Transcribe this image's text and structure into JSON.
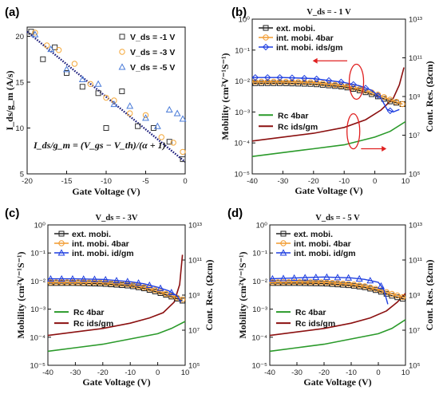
{
  "colors": {
    "ext": "#222222",
    "int4": "#f29a2e",
    "intgm": "#1f3fe0",
    "rc4": "#2a9a2a",
    "rcgm": "#8b1010",
    "scatter1": "#333333",
    "scatter3": "#f4a83a",
    "scatter5": "#4a7bd8",
    "annot": "#e02020"
  },
  "chart_data": [
    {
      "panel": "(a)",
      "type": "scatter",
      "xlabel": "Gate Voltage (V)",
      "ylabel": "I_ds/g_m (A/s)",
      "xlim": [
        -20,
        0
      ],
      "ylim": [
        5,
        21
      ],
      "xticks": [
        "-20",
        "-15",
        "-10",
        "-5",
        "0"
      ],
      "yticks": [
        "5",
        "10",
        "15",
        "20"
      ],
      "formula": "I_ds/g_m = (V_gs − V_th)/(α + 1)",
      "series": [
        {
          "name": "V_ds = -1 V",
          "marker": "square",
          "points": [
            [
              -19.5,
              20.5
            ],
            [
              -18,
              17.5
            ],
            [
              -16.5,
              18.8
            ],
            [
              -15,
              16
            ],
            [
              -13,
              14.5
            ],
            [
              -11,
              13.8
            ],
            [
              -10,
              10
            ],
            [
              -8,
              14
            ],
            [
              -6,
              10.2
            ],
            [
              -4,
              10
            ],
            [
              -2,
              8.5
            ],
            [
              -0.3,
              6.6
            ]
          ]
        },
        {
          "name": "V_ds = -3 V",
          "marker": "circle",
          "points": [
            [
              -19,
              20.4
            ],
            [
              -17.5,
              19
            ],
            [
              -16,
              18.5
            ],
            [
              -14,
              17
            ],
            [
              -12,
              14.8
            ],
            [
              -10,
              13.3
            ],
            [
              -9,
              13
            ],
            [
              -7,
              11.6
            ],
            [
              -5,
              11.4
            ],
            [
              -3,
              9
            ],
            [
              -1.5,
              8.4
            ],
            [
              -0.3,
              7.4
            ]
          ]
        },
        {
          "name": "V_ds = -5 V",
          "marker": "triangle",
          "points": [
            [
              -19,
              20.2
            ],
            [
              -17,
              18.6
            ],
            [
              -15,
              16.4
            ],
            [
              -13,
              15.3
            ],
            [
              -11,
              14.8
            ],
            [
              -9,
              12.6
            ],
            [
              -7,
              12.4
            ],
            [
              -5,
              11.1
            ],
            [
              -3.5,
              10.2
            ],
            [
              -2,
              12
            ],
            [
              -1,
              11.6
            ],
            [
              -0.3,
              11
            ]
          ]
        }
      ],
      "fit": [
        [
          -20,
          20.5
        ],
        [
          0,
          6.3
        ]
      ]
    },
    {
      "panel": "(b)",
      "type": "line",
      "title": "V_ds = - 1 V",
      "xlabel": "Gate Voltage (V)",
      "ylabel": "Mobility (cm²V⁻¹S⁻¹)",
      "y2label": "Cont. Res. (Ωcm)",
      "xlim": [
        -40,
        10
      ],
      "ylim_log": [
        -5,
        0
      ],
      "y2lim_log": [
        5,
        13
      ],
      "xticks": [
        "-40",
        "-30",
        "-20",
        "-10",
        "0",
        "10"
      ],
      "yticks": [
        "10⁻⁵",
        "10⁻⁴",
        "10⁻³",
        "10⁻²",
        "10⁻¹",
        "10⁰"
      ],
      "y2ticks": [
        "10⁵",
        "10⁷",
        "10⁹",
        "10¹¹",
        "10¹³"
      ],
      "legend_top": [
        "ext. mobi.",
        "int. mobi. 4bar",
        "int. mobi. ids/gm"
      ],
      "legend_bottom": [
        "Rc 4bar",
        "Rc ids/gm"
      ],
      "mobility": {
        "ext": [
          [
            -40,
            0.0085
          ],
          [
            -30,
            0.0085
          ],
          [
            -20,
            0.008
          ],
          [
            -10,
            0.0065
          ],
          [
            -5,
            0.005
          ],
          [
            0,
            0.0035
          ],
          [
            5,
            0.0022
          ],
          [
            9,
            0.0018
          ]
        ],
        "int4": [
          [
            -40,
            0.0095
          ],
          [
            -30,
            0.0095
          ],
          [
            -20,
            0.009
          ],
          [
            -10,
            0.007
          ],
          [
            -5,
            0.0055
          ],
          [
            0,
            0.004
          ],
          [
            5,
            0.0025
          ],
          [
            9,
            0.0018
          ]
        ],
        "intgm": [
          [
            -40,
            0.013
          ],
          [
            -30,
            0.013
          ],
          [
            -20,
            0.012
          ],
          [
            -10,
            0.009
          ],
          [
            -5,
            0.007
          ],
          [
            -1,
            0.005
          ],
          [
            2,
            0.0028
          ],
          [
            4,
            0.0012
          ],
          [
            6,
            0.001
          ],
          [
            8,
            0.0012
          ]
        ]
      },
      "rc_log": {
        "rc4": [
          [
            -40,
            5.9
          ],
          [
            -30,
            6.1
          ],
          [
            -20,
            6.3
          ],
          [
            -10,
            6.5
          ],
          [
            0,
            6.9
          ],
          [
            5,
            7.2
          ],
          [
            10,
            7.7
          ]
        ],
        "rcgm": [
          [
            -40,
            6.7
          ],
          [
            -30,
            6.9
          ],
          [
            -20,
            7.1
          ],
          [
            -10,
            7.4
          ],
          [
            -3,
            7.8
          ],
          [
            2,
            8.3
          ],
          [
            6,
            8.9
          ],
          [
            8,
            9.6
          ],
          [
            9.5,
            10.5
          ]
        ]
      }
    },
    {
      "panel": "(c)",
      "type": "line",
      "title": "V_ds = - 3V",
      "xlabel": "Gate Voltage (V)",
      "ylabel": "Mobility (cm²V⁻¹S⁻¹)",
      "y2label": "Cont. Res. (Ωcm)",
      "xlim": [
        -40,
        10
      ],
      "ylim_log": [
        -5,
        0
      ],
      "y2lim_log": [
        5,
        13
      ],
      "xticks": [
        "-40",
        "-30",
        "-20",
        "-10",
        "0",
        "10"
      ],
      "yticks": [
        "10⁻⁵",
        "10⁻⁴",
        "10⁻³",
        "10⁻²",
        "10⁻¹",
        "10⁰"
      ],
      "y2ticks": [
        "10⁵",
        "10⁷",
        "10⁹",
        "10¹¹",
        "10¹³"
      ],
      "legend_top": [
        "ext. mobi.",
        "int. mobi. 4bar",
        "int. mobi. id/gm"
      ],
      "legend_bottom": [
        "Rc 4bar",
        "Rc ids/gm"
      ],
      "mobility": {
        "ext": [
          [
            -40,
            0.0085
          ],
          [
            -30,
            0.0085
          ],
          [
            -20,
            0.008
          ],
          [
            -10,
            0.0068
          ],
          [
            -5,
            0.0055
          ],
          [
            0,
            0.004
          ],
          [
            5,
            0.0028
          ],
          [
            9,
            0.002
          ]
        ],
        "int4": [
          [
            -40,
            0.009
          ],
          [
            -30,
            0.009
          ],
          [
            -20,
            0.0088
          ],
          [
            -10,
            0.0075
          ],
          [
            -5,
            0.006
          ],
          [
            0,
            0.0045
          ],
          [
            5,
            0.003
          ],
          [
            9,
            0.0022
          ]
        ],
        "intgm": [
          [
            -40,
            0.012
          ],
          [
            -30,
            0.012
          ],
          [
            -20,
            0.0115
          ],
          [
            -10,
            0.0095
          ],
          [
            -5,
            0.008
          ],
          [
            0,
            0.006
          ],
          [
            4,
            0.0045
          ],
          [
            7,
            0.003
          ],
          [
            8.5,
            0.0018
          ]
        ]
      },
      "rc_log": {
        "rc4": [
          [
            -40,
            5.8
          ],
          [
            -30,
            6.0
          ],
          [
            -20,
            6.2
          ],
          [
            -10,
            6.5
          ],
          [
            0,
            6.8
          ],
          [
            5,
            7.1
          ],
          [
            10,
            7.5
          ]
        ],
        "rcgm": [
          [
            -40,
            6.7
          ],
          [
            -30,
            6.9
          ],
          [
            -20,
            7.1
          ],
          [
            -10,
            7.4
          ],
          [
            -3,
            7.7
          ],
          [
            2,
            8.0
          ],
          [
            6,
            8.6
          ],
          [
            8,
            9.6
          ],
          [
            9,
            11.3
          ]
        ]
      }
    },
    {
      "panel": "(d)",
      "type": "line",
      "title": "V_ds = - 5 V",
      "xlabel": "Gate Voltage (V)",
      "ylabel": "Mobility (cm²V⁻¹S⁻¹)",
      "y2label": "Cont. Res. (Ωcm)",
      "xlim": [
        -40,
        10
      ],
      "ylim_log": [
        -5,
        0
      ],
      "y2lim_log": [
        5,
        13
      ],
      "xticks": [
        "-40",
        "-30",
        "-20",
        "-10",
        "0",
        "10"
      ],
      "yticks": [
        "10⁻⁵",
        "10⁻⁴",
        "10⁻³",
        "10⁻²",
        "10⁻¹",
        "10⁰"
      ],
      "y2ticks": [
        "10⁵",
        "10⁷",
        "10⁹",
        "10¹¹",
        "10¹³"
      ],
      "legend_top": [
        "ext. mobi.",
        "int. mobi. 4bar",
        "int. mobi. id/gm"
      ],
      "legend_bottom": [
        "Rc 4bar",
        "Rc ids/gm"
      ],
      "mobility": {
        "ext": [
          [
            -40,
            0.0085
          ],
          [
            -30,
            0.0085
          ],
          [
            -20,
            0.0082
          ],
          [
            -10,
            0.007
          ],
          [
            -5,
            0.006
          ],
          [
            0,
            0.0045
          ],
          [
            5,
            0.003
          ],
          [
            10,
            0.0022
          ]
        ],
        "int4": [
          [
            -40,
            0.009
          ],
          [
            -30,
            0.0092
          ],
          [
            -20,
            0.009
          ],
          [
            -10,
            0.0078
          ],
          [
            -5,
            0.0065
          ],
          [
            0,
            0.005
          ],
          [
            5,
            0.0035
          ],
          [
            10,
            0.0025
          ]
        ],
        "intgm": [
          [
            -40,
            0.012
          ],
          [
            -30,
            0.013
          ],
          [
            -20,
            0.014
          ],
          [
            -10,
            0.013
          ],
          [
            -5,
            0.0115
          ],
          [
            0,
            0.009
          ],
          [
            2,
            0.005
          ],
          [
            3.5,
            0.0015
          ]
        ]
      },
      "rc_log": {
        "rc4": [
          [
            -40,
            5.8
          ],
          [
            -30,
            6.0
          ],
          [
            -20,
            6.2
          ],
          [
            -10,
            6.5
          ],
          [
            0,
            6.8
          ],
          [
            5,
            7.1
          ],
          [
            10,
            7.6
          ]
        ],
        "rcgm": [
          [
            -40,
            6.7
          ],
          [
            -30,
            6.9
          ],
          [
            -20,
            7.1
          ],
          [
            -10,
            7.4
          ],
          [
            -3,
            7.7
          ],
          [
            3,
            8.1
          ],
          [
            7,
            8.6
          ],
          [
            10,
            9.1
          ]
        ]
      }
    }
  ]
}
